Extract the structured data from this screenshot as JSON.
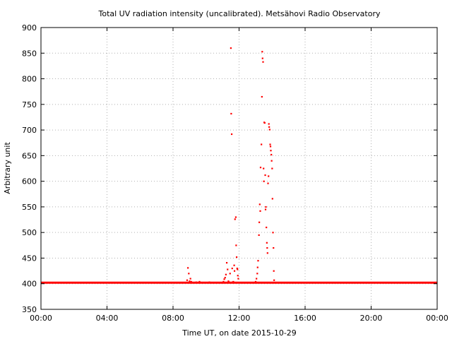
{
  "chart_data": {
    "type": "scatter",
    "title": "Total UV radiation intensity (uncalibrated). Metsähovi Radio Observatory",
    "xlabel": "Time UT, on date 2015-10-29",
    "ylabel": "Arbitrary unit",
    "x_unit": "hours UT",
    "xlim": [
      0,
      24
    ],
    "ylim": [
      350,
      900
    ],
    "x_ticks": [
      {
        "value": 0,
        "label": "00:00"
      },
      {
        "value": 4,
        "label": "04:00"
      },
      {
        "value": 8,
        "label": "08:00"
      },
      {
        "value": 12,
        "label": "12:00"
      },
      {
        "value": 16,
        "label": "16:00"
      },
      {
        "value": 20,
        "label": "20:00"
      },
      {
        "value": 24,
        "label": "00:00"
      }
    ],
    "y_ticks": [
      {
        "value": 350,
        "label": "350"
      },
      {
        "value": 400,
        "label": "400"
      },
      {
        "value": 450,
        "label": "450"
      },
      {
        "value": 500,
        "label": "500"
      },
      {
        "value": 550,
        "label": "550"
      },
      {
        "value": 600,
        "label": "600"
      },
      {
        "value": 650,
        "label": "650"
      },
      {
        "value": 700,
        "label": "700"
      },
      {
        "value": 750,
        "label": "750"
      },
      {
        "value": 800,
        "label": "800"
      },
      {
        "value": 850,
        "label": "850"
      },
      {
        "value": 900,
        "label": "900"
      }
    ],
    "grid": true,
    "series_color": "#ff0000",
    "baseline": {
      "y": 402,
      "x_start": 0,
      "x_end": 24
    },
    "points": [
      [
        8.85,
        407
      ],
      [
        8.9,
        431
      ],
      [
        8.95,
        420
      ],
      [
        9.0,
        405
      ],
      [
        9.05,
        410
      ],
      [
        9.1,
        404
      ],
      [
        9.4,
        403
      ],
      [
        9.6,
        404
      ],
      [
        9.9,
        402
      ],
      [
        10.2,
        403
      ],
      [
        10.5,
        402
      ],
      [
        11.05,
        404
      ],
      [
        11.1,
        409
      ],
      [
        11.15,
        412
      ],
      [
        11.2,
        418
      ],
      [
        11.25,
        441
      ],
      [
        11.3,
        428
      ],
      [
        11.35,
        405
      ],
      [
        11.4,
        403
      ],
      [
        11.45,
        420
      ],
      [
        11.5,
        860
      ],
      [
        11.52,
        732
      ],
      [
        11.55,
        692
      ],
      [
        11.58,
        430
      ],
      [
        11.6,
        403
      ],
      [
        11.65,
        404
      ],
      [
        11.7,
        436
      ],
      [
        11.72,
        425
      ],
      [
        11.75,
        526
      ],
      [
        11.8,
        530
      ],
      [
        11.82,
        475
      ],
      [
        11.85,
        452
      ],
      [
        11.88,
        430
      ],
      [
        11.9,
        428
      ],
      [
        11.92,
        416
      ],
      [
        11.95,
        410
      ],
      [
        13.0,
        404
      ],
      [
        13.05,
        410
      ],
      [
        13.1,
        420
      ],
      [
        13.12,
        432
      ],
      [
        13.15,
        445
      ],
      [
        13.2,
        495
      ],
      [
        13.22,
        520
      ],
      [
        13.25,
        555
      ],
      [
        13.28,
        542
      ],
      [
        13.3,
        627
      ],
      [
        13.35,
        672
      ],
      [
        13.38,
        765
      ],
      [
        13.4,
        853
      ],
      [
        13.42,
        840
      ],
      [
        13.45,
        833
      ],
      [
        13.48,
        625
      ],
      [
        13.5,
        600
      ],
      [
        13.52,
        715
      ],
      [
        13.55,
        714
      ],
      [
        13.58,
        612
      ],
      [
        13.6,
        545
      ],
      [
        13.62,
        550
      ],
      [
        13.65,
        510
      ],
      [
        13.68,
        480
      ],
      [
        13.7,
        470
      ],
      [
        13.72,
        460
      ],
      [
        13.75,
        596
      ],
      [
        13.78,
        610
      ],
      [
        13.8,
        712
      ],
      [
        13.82,
        706
      ],
      [
        13.85,
        701
      ],
      [
        13.88,
        672
      ],
      [
        13.9,
        668
      ],
      [
        13.92,
        660
      ],
      [
        13.95,
        652
      ],
      [
        13.97,
        640
      ],
      [
        14.0,
        625
      ],
      [
        14.02,
        566
      ],
      [
        14.05,
        500
      ],
      [
        14.08,
        470
      ],
      [
        14.1,
        425
      ],
      [
        14.12,
        407
      ]
    ]
  }
}
